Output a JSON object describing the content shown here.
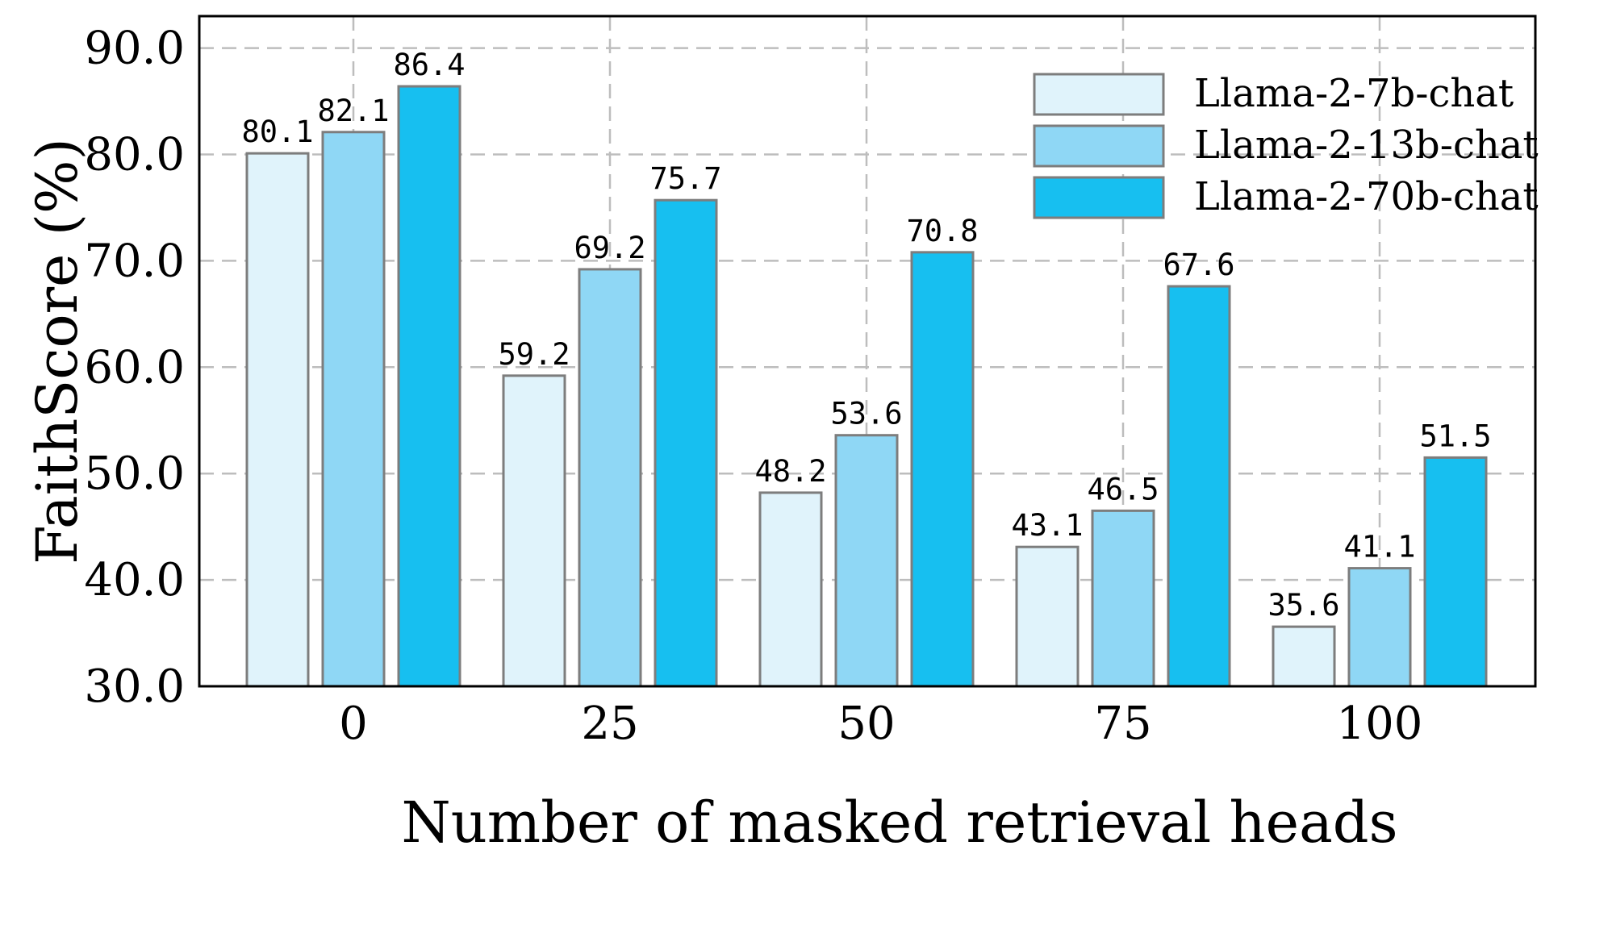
{
  "chart_data": {
    "type": "bar",
    "title": "",
    "xlabel": "Number of masked retrieval heads",
    "ylabel": "FaithScore (%)",
    "categories": [
      "0",
      "25",
      "50",
      "75",
      "100"
    ],
    "ylim": [
      30,
      93
    ],
    "yticks": [
      "30.0",
      "40.0",
      "50.0",
      "60.0",
      "70.0",
      "80.0",
      "90.0"
    ],
    "grid": true,
    "legend_position": "top-right",
    "series": [
      {
        "name": "Llama-2-7b-chat",
        "color": "#e0f3fb",
        "values": [
          80.1,
          59.2,
          48.2,
          43.1,
          35.6
        ],
        "labels": [
          "80.1",
          "59.2",
          "48.2",
          "43.1",
          "35.6"
        ]
      },
      {
        "name": "Llama-2-13b-chat",
        "color": "#8fd7f5",
        "values": [
          82.1,
          69.2,
          53.6,
          46.5,
          41.1
        ],
        "labels": [
          "82.1",
          "69.2",
          "53.6",
          "46.5",
          "41.1"
        ]
      },
      {
        "name": "Llama-2-70b-chat",
        "color": "#17bff0",
        "values": [
          86.4,
          75.7,
          70.8,
          67.6,
          51.5
        ],
        "labels": [
          "86.4",
          "75.7",
          "70.8",
          "67.6",
          "51.5"
        ]
      }
    ]
  }
}
